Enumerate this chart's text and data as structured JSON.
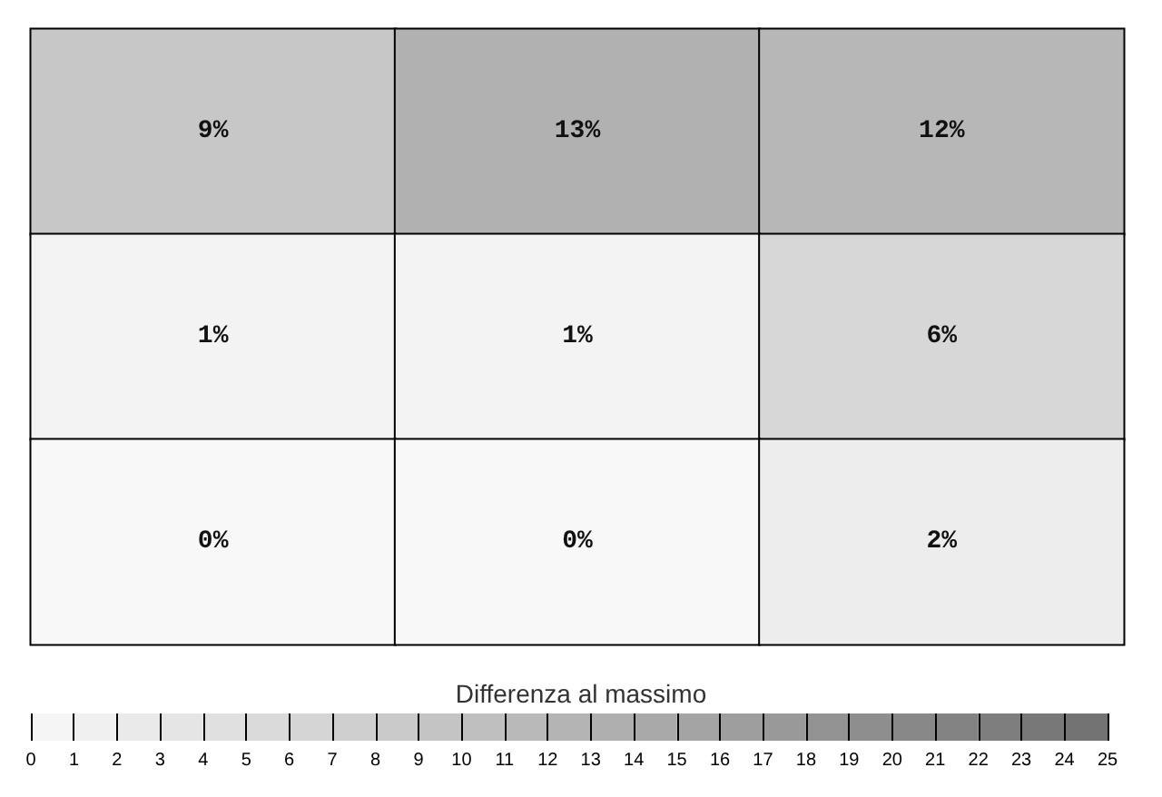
{
  "chart_data": {
    "type": "heatmap",
    "clabel": "Differenza al massimo",
    "categories": [
      null,
      null,
      null
    ],
    "y_categories": [
      null,
      null,
      null
    ],
    "cells": [
      [
        9,
        13,
        12
      ],
      [
        1,
        1,
        6
      ],
      [
        0,
        0,
        2
      ]
    ],
    "cell_labels": [
      [
        "9%",
        "13%",
        "12%"
      ],
      [
        "1%",
        "1%",
        "6%"
      ],
      [
        "0%",
        "0%",
        "2%"
      ]
    ],
    "clim": [
      0,
      25
    ],
    "cticks": [
      0,
      1,
      2,
      3,
      4,
      5,
      6,
      7,
      8,
      9,
      10,
      11,
      12,
      13,
      14,
      15,
      16,
      17,
      18,
      19,
      20,
      21,
      22,
      23,
      24,
      25
    ]
  }
}
